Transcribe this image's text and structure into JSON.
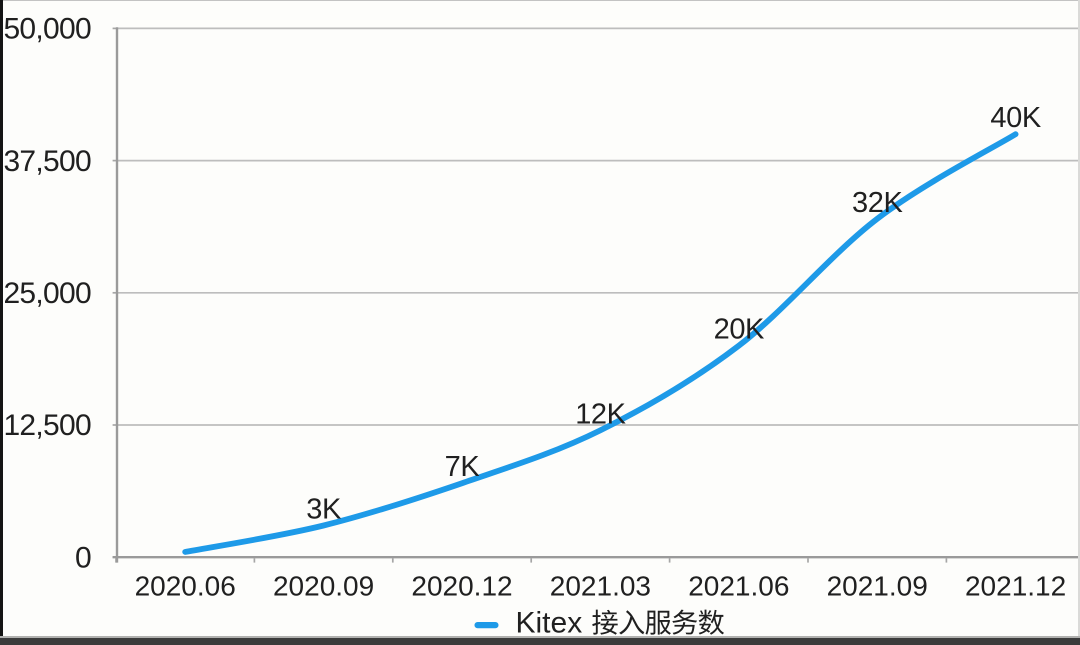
{
  "window": {
    "kind": "video-frame",
    "background": "#fdfdfb",
    "frame_left_color": "#141414",
    "frame_bottom_color": "#3b3b3b"
  },
  "chart_data": {
    "type": "line",
    "title": "",
    "categories": [
      "2020.06",
      "2020.09",
      "2020.12",
      "2021.03",
      "2021.06",
      "2021.09",
      "2021.12"
    ],
    "series": [
      {
        "name": "Kitex 接入服务数",
        "values": [
          500,
          3000,
          7000,
          12000,
          20000,
          32000,
          40000
        ],
        "color": "#1E9AE8"
      }
    ],
    "point_labels": [
      "",
      "3K",
      "7K",
      "12K",
      "20K",
      "32K",
      "40K"
    ],
    "y_ticks": [
      {
        "value": 0,
        "label": "0"
      },
      {
        "value": 12500,
        "label": "12,500"
      },
      {
        "value": 25000,
        "label": "25,000"
      },
      {
        "value": 37500,
        "label": "37,500"
      },
      {
        "value": 50000,
        "label": "50,000"
      }
    ],
    "ylim": [
      0,
      50000
    ],
    "xlabel": "",
    "ylabel": "",
    "grid": "horizontal",
    "legend_position": "bottom-center",
    "legend_label": "Kitex 接入服务数",
    "legend_latin": "Kitex",
    "legend_cjk": "接入服务数",
    "smooth": true,
    "colors": {
      "line": "#1E9AE8",
      "grid": "#bdbdbd",
      "axis": "#9a9a9a",
      "tick": "#a6a6a6",
      "text": "#202020"
    }
  }
}
